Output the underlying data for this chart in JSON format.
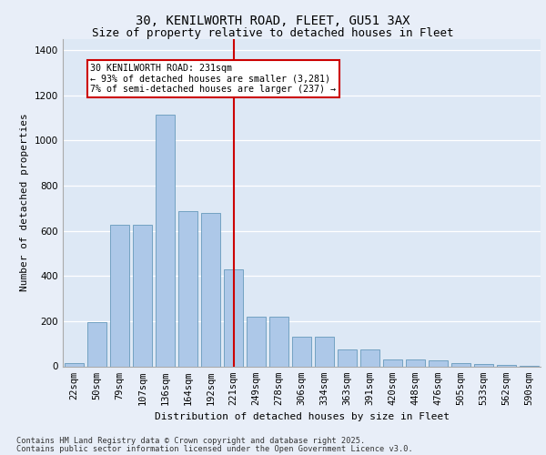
{
  "title1": "30, KENILWORTH ROAD, FLEET, GU51 3AX",
  "title2": "Size of property relative to detached houses in Fleet",
  "xlabel": "Distribution of detached houses by size in Fleet",
  "ylabel": "Number of detached properties",
  "categories": [
    "22sqm",
    "50sqm",
    "79sqm",
    "107sqm",
    "136sqm",
    "164sqm",
    "192sqm",
    "221sqm",
    "249sqm",
    "278sqm",
    "306sqm",
    "334sqm",
    "363sqm",
    "391sqm",
    "420sqm",
    "448sqm",
    "476sqm",
    "505sqm",
    "533sqm",
    "562sqm",
    "590sqm"
  ],
  "values": [
    15,
    195,
    625,
    625,
    1115,
    685,
    680,
    430,
    220,
    220,
    130,
    130,
    75,
    75,
    30,
    30,
    25,
    15,
    10,
    5,
    3
  ],
  "bar_color": "#adc8e8",
  "bar_edge_color": "#6699bb",
  "bg_color": "#dde8f5",
  "fig_bg_color": "#e8eef8",
  "grid_color": "#ffffff",
  "annotation_text": "30 KENILWORTH ROAD: 231sqm\n← 93% of detached houses are smaller (3,281)\n7% of semi-detached houses are larger (237) →",
  "vline_color": "#cc0000",
  "annotation_box_edgecolor": "#cc0000",
  "footer1": "Contains HM Land Registry data © Crown copyright and database right 2025.",
  "footer2": "Contains public sector information licensed under the Open Government Licence v3.0.",
  "ylim": [
    0,
    1450
  ],
  "yticks": [
    0,
    200,
    400,
    600,
    800,
    1000,
    1200,
    1400
  ],
  "title1_fontsize": 10,
  "title2_fontsize": 9,
  "tick_fontsize": 7.5,
  "ylabel_fontsize": 8,
  "xlabel_fontsize": 8
}
